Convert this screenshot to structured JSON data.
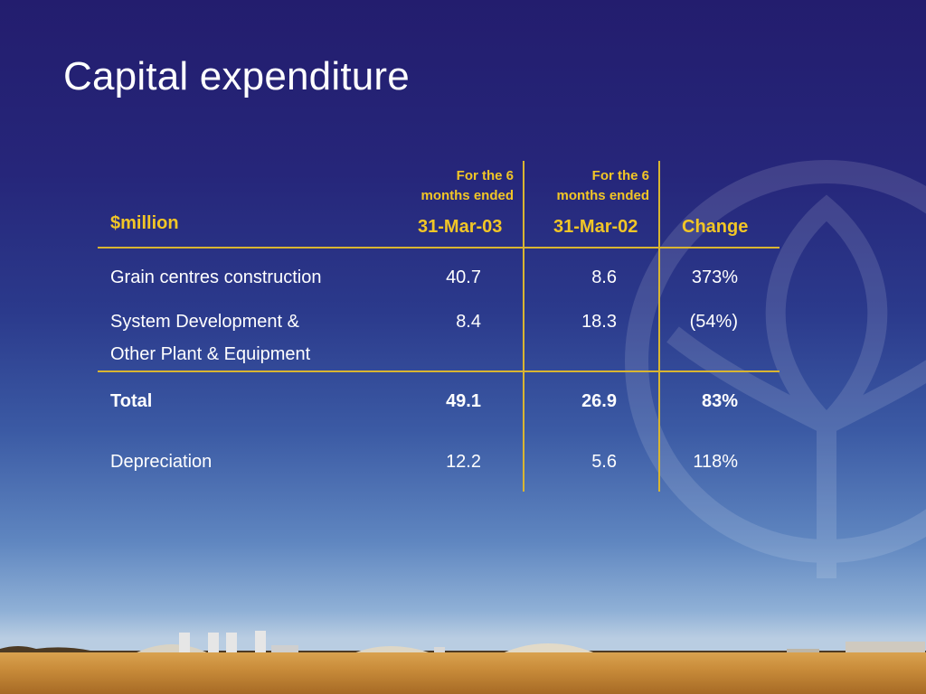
{
  "slide": {
    "title": "Capital expenditure"
  },
  "table": {
    "unit_label": "$million",
    "columns": [
      {
        "sub": [
          "For the 6",
          "months ended"
        ],
        "label": "31-Mar-03"
      },
      {
        "sub": [
          "For the 6",
          "months ended"
        ],
        "label": "31-Mar-02"
      },
      {
        "label": "Change"
      }
    ],
    "rows": [
      {
        "label": [
          "Grain centres construction"
        ],
        "values": [
          "40.7",
          "8.6",
          "373%"
        ],
        "bold": false
      },
      {
        "label": [
          "System Development &",
          "Other Plant & Equipment"
        ],
        "values": [
          "8.4",
          "18.3",
          "(54%)"
        ],
        "bold": false
      },
      {
        "label": [
          "Total"
        ],
        "values": [
          "49.1",
          "26.9",
          "83%"
        ],
        "bold": true
      },
      {
        "label": [
          "Depreciation"
        ],
        "values": [
          "12.2",
          "5.6",
          "118%"
        ],
        "bold": false
      }
    ]
  },
  "colors": {
    "accent_gold": "#f2c626",
    "rule_gold": "#d9b531",
    "text": "#ffffff"
  },
  "icons": {
    "watermark": "wheat-sheaf-logo-icon"
  }
}
